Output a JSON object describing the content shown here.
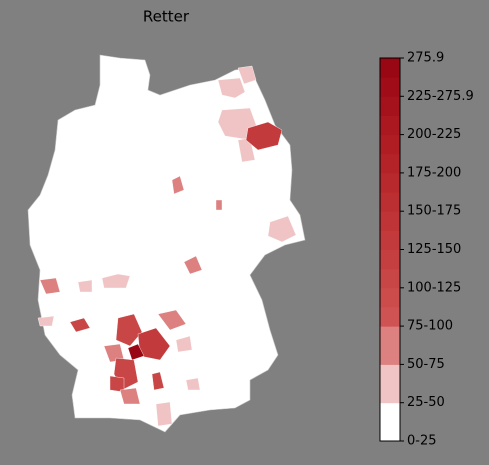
{
  "title": "Retter",
  "colorbar": {
    "ticks": [
      "0-25",
      "25-50",
      "50-75",
      "75-100",
      "100-125",
      "125-150",
      "150-175",
      "175-200",
      "200-225",
      "225-275.9",
      "275.9"
    ],
    "colors": [
      "#ffffff",
      "#f0c4c4",
      "#dc8080",
      "#cf5353",
      "#cc4c4c",
      "#c84646",
      "#c53f40",
      "#c23a3b",
      "#bf3436",
      "#bb2e31",
      "#b8292d",
      "#b42328",
      "#b01e24",
      "#ab1820",
      "#a6121c",
      "#a00c18",
      "#990715"
    ]
  }
}
